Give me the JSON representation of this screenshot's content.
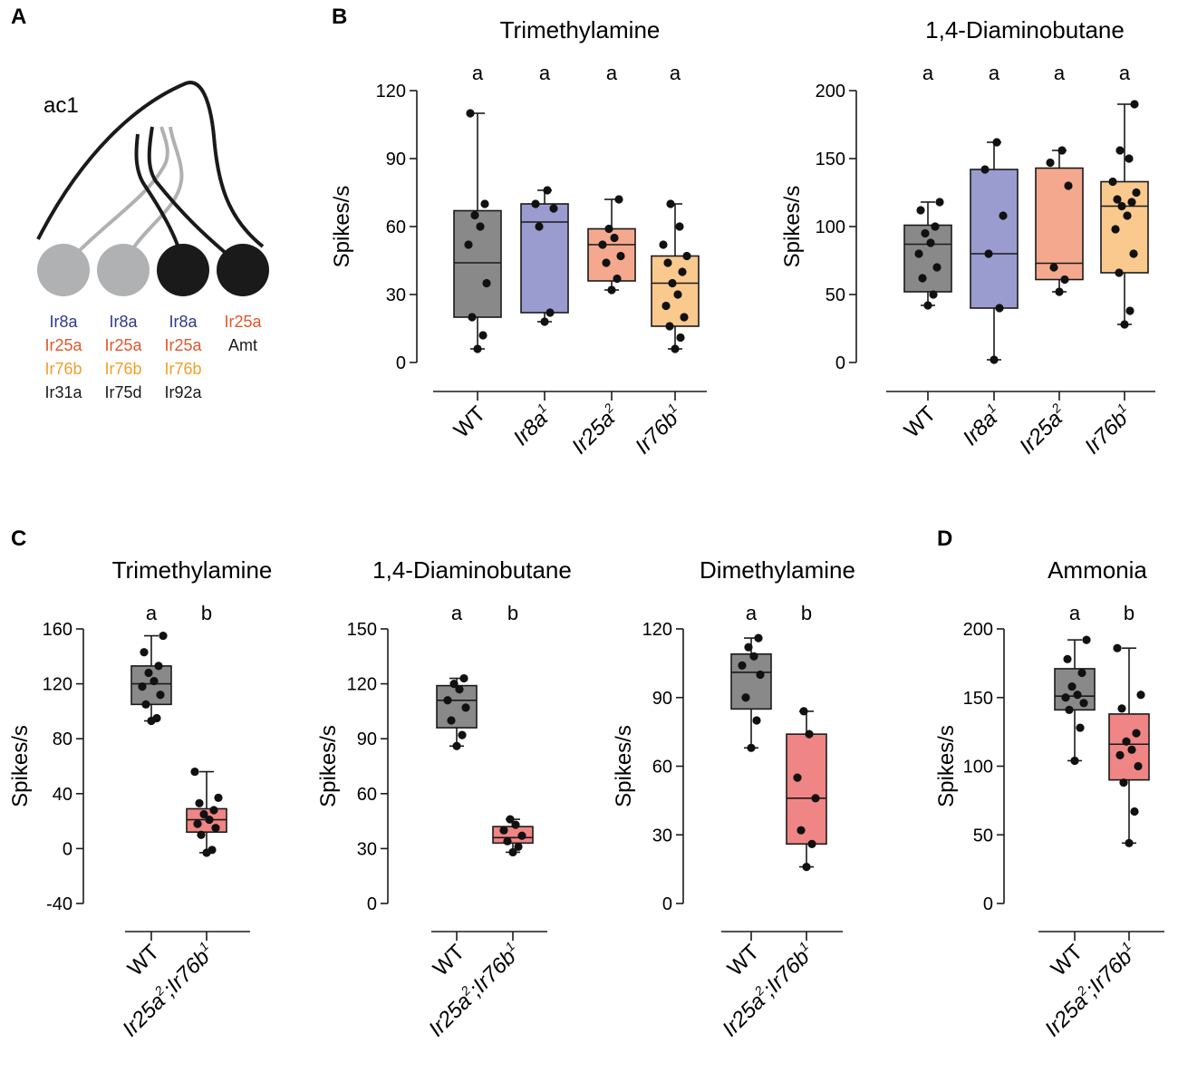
{
  "panels": {
    "A": "A",
    "B": "B",
    "C": "C",
    "D": "D"
  },
  "colors": {
    "WT": "#898989",
    "Ir8a": "#9a9bcf",
    "Ir25a": "#f4a98f",
    "Ir76b": "#f9c98e",
    "double": "#f08585",
    "ir8a_text": "#2d3a8c",
    "ir25a_text": "#e2572b",
    "ir76b_text": "#f0a02c",
    "neuron_grey": "#b0b1b3",
    "neuron_black": "#1a1a1a"
  },
  "diagram": {
    "sensillum_label": "ac1",
    "neurons": [
      {
        "shade": "grey",
        "receptors": [
          {
            "name": "Ir8a",
            "color": "ir8a"
          },
          {
            "name": "Ir25a",
            "color": "ir25a"
          },
          {
            "name": "Ir76b",
            "color": "ir76b"
          },
          {
            "name": "Ir31a",
            "color": "black"
          }
        ]
      },
      {
        "shade": "grey",
        "receptors": [
          {
            "name": "Ir8a",
            "color": "ir8a"
          },
          {
            "name": "Ir25a",
            "color": "ir25a"
          },
          {
            "name": "Ir76b",
            "color": "ir76b"
          },
          {
            "name": "Ir75d",
            "color": "black"
          }
        ]
      },
      {
        "shade": "black",
        "receptors": [
          {
            "name": "Ir8a",
            "color": "ir8a"
          },
          {
            "name": "Ir25a",
            "color": "ir25a"
          },
          {
            "name": "Ir76b",
            "color": "ir76b"
          },
          {
            "name": "Ir92a",
            "color": "black"
          }
        ]
      },
      {
        "shade": "black",
        "receptors": [
          {
            "name": "Ir25a",
            "color": "ir25a"
          },
          {
            "name": "Amt",
            "color": "black"
          }
        ]
      }
    ]
  },
  "chart_data": [
    {
      "id": "B1",
      "panel": "B",
      "type": "box",
      "title": "Trimethylamine",
      "ylabel": "Spikes/s",
      "ylim": [
        0,
        120
      ],
      "yticks": [
        0,
        30,
        60,
        90,
        120
      ],
      "categories": [
        {
          "base": "WT",
          "sup": ""
        },
        {
          "base": "Ir8a",
          "sup": "1"
        },
        {
          "base": "Ir25a",
          "sup": "2"
        },
        {
          "base": "Ir76b",
          "sup": "1"
        }
      ],
      "series": [
        {
          "name": "WT",
          "color": "WT",
          "letter": "a",
          "min": 6,
          "q1": 20,
          "median": 44,
          "q3": 67,
          "max": 110,
          "points": [
            6,
            12,
            20,
            35,
            52,
            60,
            65,
            70,
            110
          ]
        },
        {
          "name": "Ir8a1",
          "color": "Ir8a",
          "letter": "a",
          "min": 18,
          "q1": 22,
          "median": 62,
          "q3": 70,
          "max": 76,
          "points": [
            18,
            22,
            60,
            68,
            70,
            76
          ]
        },
        {
          "name": "Ir25a2",
          "color": "Ir25a",
          "letter": "a",
          "min": 32,
          "q1": 36,
          "median": 52,
          "q3": 59,
          "max": 72,
          "points": [
            32,
            37,
            44,
            47,
            52,
            55,
            59,
            72
          ]
        },
        {
          "name": "Ir76b1",
          "color": "Ir76b",
          "letter": "a",
          "min": 6,
          "q1": 16,
          "median": 35,
          "q3": 47,
          "max": 70,
          "points": [
            6,
            11,
            16,
            20,
            25,
            30,
            35,
            40,
            44,
            47,
            52,
            60,
            70
          ]
        }
      ]
    },
    {
      "id": "B2",
      "panel": "B",
      "type": "box",
      "title": "1,4-Diaminobutane",
      "ylabel": "Spikes/s",
      "ylim": [
        0,
        200
      ],
      "yticks": [
        0,
        50,
        100,
        150,
        200
      ],
      "categories": [
        {
          "base": "WT",
          "sup": ""
        },
        {
          "base": "Ir8a",
          "sup": "1"
        },
        {
          "base": "Ir25a",
          "sup": "2"
        },
        {
          "base": "Ir76b",
          "sup": "1"
        }
      ],
      "series": [
        {
          "name": "WT",
          "color": "WT",
          "letter": "a",
          "min": 42,
          "q1": 52,
          "median": 87,
          "q3": 101,
          "max": 118,
          "points": [
            42,
            50,
            62,
            70,
            80,
            88,
            95,
            100,
            112,
            118
          ]
        },
        {
          "name": "Ir8a1",
          "color": "Ir8a",
          "letter": "a",
          "min": 2,
          "q1": 40,
          "median": 80,
          "q3": 142,
          "max": 162,
          "points": [
            2,
            40,
            80,
            108,
            142,
            162
          ]
        },
        {
          "name": "Ir25a2",
          "color": "Ir25a",
          "letter": "a",
          "min": 52,
          "q1": 61,
          "median": 73,
          "q3": 143,
          "max": 156,
          "points": [
            52,
            61,
            70,
            130,
            147,
            156
          ]
        },
        {
          "name": "Ir76b1",
          "color": "Ir76b",
          "letter": "a",
          "min": 28,
          "q1": 66,
          "median": 115,
          "q3": 133,
          "max": 190,
          "points": [
            28,
            38,
            66,
            80,
            98,
            108,
            115,
            118,
            120,
            125,
            133,
            150,
            156,
            190
          ]
        }
      ]
    },
    {
      "id": "C1",
      "panel": "C",
      "type": "box",
      "title": "Trimethylamine",
      "ylabel": "Spikes/s",
      "ylim": [
        -40,
        160
      ],
      "yticks": [
        -40,
        0,
        40,
        80,
        120,
        160
      ],
      "categories": [
        {
          "base": "WT",
          "sup": ""
        },
        {
          "parts": [
            {
              "base": "Ir25a",
              "sup": "2"
            },
            {
              "base": ";Ir76b",
              "sup": "1"
            }
          ]
        }
      ],
      "series": [
        {
          "name": "WT",
          "color": "WT",
          "letter": "a",
          "min": 93,
          "q1": 105,
          "median": 120,
          "q3": 133,
          "max": 155,
          "points": [
            93,
            95,
            105,
            112,
            118,
            122,
            128,
            133,
            143,
            155
          ]
        },
        {
          "name": "Ir25a2;Ir76b1",
          "color": "double",
          "letter": "b",
          "min": -3,
          "q1": 12,
          "median": 21,
          "q3": 29,
          "max": 56,
          "points": [
            -3,
            -1,
            10,
            15,
            18,
            21,
            25,
            28,
            33,
            37,
            56
          ]
        }
      ]
    },
    {
      "id": "C2",
      "panel": "C",
      "type": "box",
      "title": "1,4-Diaminobutane",
      "ylabel": "Spikes/s",
      "ylim": [
        0,
        150
      ],
      "yticks": [
        0,
        30,
        60,
        90,
        120,
        150
      ],
      "categories": [
        {
          "base": "WT",
          "sup": ""
        },
        {
          "parts": [
            {
              "base": "Ir25a",
              "sup": "2"
            },
            {
              "base": ";Ir76b",
              "sup": "1"
            }
          ]
        }
      ],
      "series": [
        {
          "name": "WT",
          "color": "WT",
          "letter": "a",
          "min": 86,
          "q1": 96,
          "median": 111,
          "q3": 119,
          "max": 123,
          "points": [
            86,
            92,
            100,
            107,
            111,
            117,
            120,
            123
          ]
        },
        {
          "name": "Ir25a2;Ir76b1",
          "color": "double",
          "letter": "b",
          "min": 28,
          "q1": 33,
          "median": 36,
          "q3": 42,
          "max": 46,
          "points": [
            28,
            31,
            34,
            37,
            40,
            43,
            46
          ]
        }
      ]
    },
    {
      "id": "C3",
      "panel": "C",
      "type": "box",
      "title": "Dimethylamine",
      "ylabel": "Spikes/s",
      "ylim": [
        0,
        120
      ],
      "yticks": [
        0,
        30,
        60,
        90,
        120
      ],
      "categories": [
        {
          "base": "WT",
          "sup": ""
        },
        {
          "parts": [
            {
              "base": "Ir25a",
              "sup": "2"
            },
            {
              "base": ";Ir76b",
              "sup": "1"
            }
          ]
        }
      ],
      "series": [
        {
          "name": "WT",
          "color": "WT",
          "letter": "a",
          "min": 68,
          "q1": 85,
          "median": 101,
          "q3": 109,
          "max": 116,
          "points": [
            68,
            80,
            90,
            100,
            104,
            108,
            112,
            116
          ]
        },
        {
          "name": "Ir25a2;Ir76b1",
          "color": "double",
          "letter": "b",
          "min": 16,
          "q1": 26,
          "median": 46,
          "q3": 74,
          "max": 84,
          "points": [
            16,
            26,
            32,
            46,
            55,
            74,
            84
          ]
        }
      ]
    },
    {
      "id": "D1",
      "panel": "D",
      "type": "box",
      "title": "Ammonia",
      "ylabel": "Spikes/s",
      "ylim": [
        0,
        200
      ],
      "yticks": [
        0,
        50,
        100,
        150,
        200
      ],
      "categories": [
        {
          "base": "WT",
          "sup": ""
        },
        {
          "parts": [
            {
              "base": "Ir25a",
              "sup": "2"
            },
            {
              "base": ";Ir76b",
              "sup": "1"
            }
          ]
        }
      ],
      "series": [
        {
          "name": "WT",
          "color": "WT",
          "letter": "a",
          "min": 104,
          "q1": 141,
          "median": 151,
          "q3": 171,
          "max": 192,
          "points": [
            104,
            128,
            141,
            146,
            150,
            152,
            158,
            168,
            178,
            192
          ]
        },
        {
          "name": "Ir25a2;Ir76b1",
          "color": "double",
          "letter": "b",
          "min": 44,
          "q1": 90,
          "median": 116,
          "q3": 138,
          "max": 186,
          "points": [
            44,
            67,
            88,
            100,
            108,
            112,
            118,
            124,
            142,
            152,
            186
          ]
        }
      ]
    }
  ]
}
